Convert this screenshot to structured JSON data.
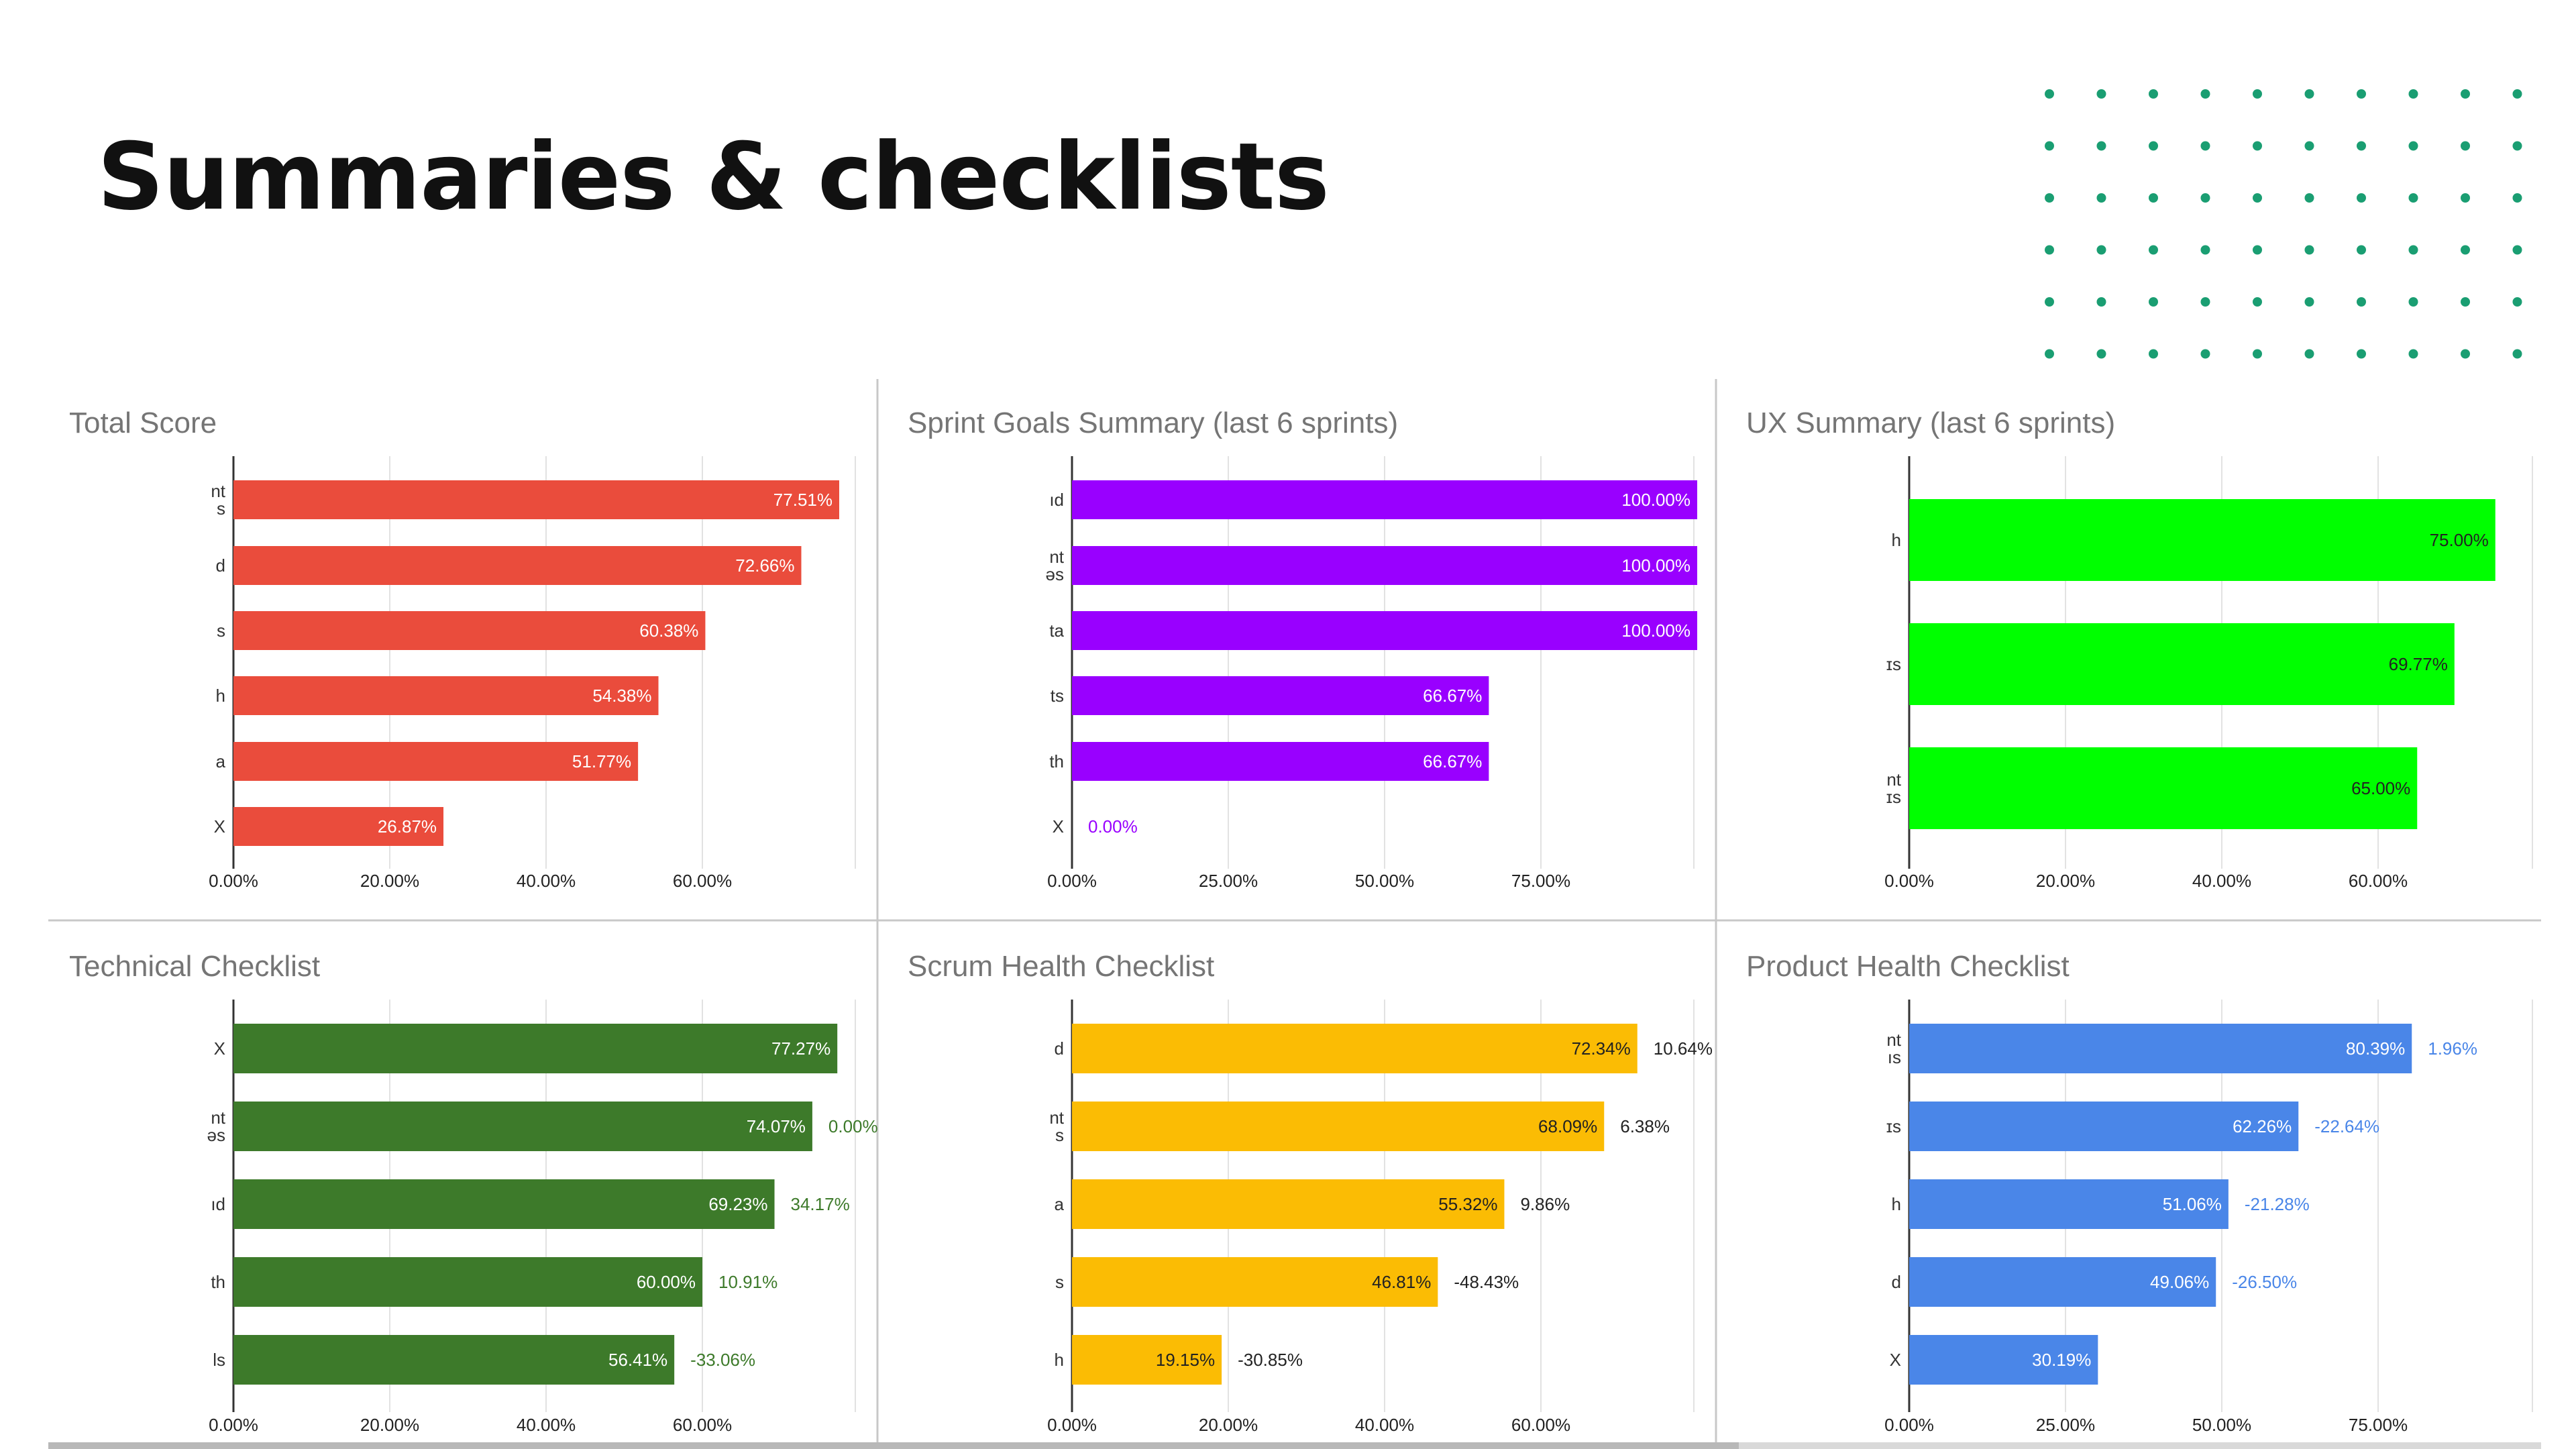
{
  "slide": {
    "title": "Summaries & checklists"
  },
  "decoration": {
    "dot_color": "#1a9e72",
    "dot_rows": 6,
    "dot_cols": 10
  },
  "chart_data": [
    {
      "type": "bar",
      "title": "Total Score",
      "orientation": "horizontal",
      "categories": [
        "nt\ns",
        "d",
        "s",
        "h",
        "a",
        "X"
      ],
      "values": [
        77.51,
        72.66,
        60.38,
        54.38,
        51.77,
        26.87
      ],
      "value_labels": [
        "77.51%",
        "72.66%",
        "60.38%",
        "54.38%",
        "51.77%",
        "26.87%"
      ],
      "xlim": [
        0,
        80
      ],
      "ticks": [
        0,
        20,
        40,
        60
      ],
      "tick_labels": [
        "0.00%",
        "20.00%",
        "40.00%",
        "60.00%"
      ],
      "bar_color": "#ea4c3c",
      "grid": true
    },
    {
      "type": "bar",
      "title": "Sprint Goals Summary (last 6 sprints)",
      "orientation": "horizontal",
      "categories": [
        "ıd",
        "nt\nəs",
        "ta",
        "ts",
        "th",
        "X"
      ],
      "values": [
        100,
        100,
        100,
        66.67,
        66.67,
        0
      ],
      "value_labels": [
        "100.00%",
        "100.00%",
        "100.00%",
        "66.67%",
        "66.67%",
        "0.00%"
      ],
      "xlim": [
        0,
        100
      ],
      "ticks": [
        0,
        25,
        50,
        75
      ],
      "tick_labels": [
        "0.00%",
        "25.00%",
        "50.00%",
        "75.00%"
      ],
      "bar_color": "#9900ff",
      "grid": true
    },
    {
      "type": "bar",
      "title": "UX Summary (last 6 sprints)",
      "orientation": "horizontal",
      "categories": [
        "h",
        "ɪs",
        "nt\nɪs"
      ],
      "values": [
        75.0,
        69.77,
        65.0
      ],
      "value_labels": [
        "75.00%",
        "69.77%",
        "65.00%"
      ],
      "xlim": [
        0,
        80
      ],
      "ticks": [
        0,
        20,
        40,
        60
      ],
      "tick_labels": [
        "0.00%",
        "20.00%",
        "40.00%",
        "60.00%"
      ],
      "bar_color": "#00ff00",
      "grid": true
    },
    {
      "type": "bar",
      "title": "Technical Checklist",
      "orientation": "horizontal",
      "categories": [
        "X",
        "nt\nəs",
        "ıd",
        "th",
        "ls"
      ],
      "values": [
        77.27,
        74.07,
        69.23,
        60.0,
        56.41
      ],
      "value_labels": [
        "77.27%",
        "74.07%",
        "69.23%",
        "60.00%",
        "56.41%"
      ],
      "delta_labels": [
        "",
        "0.00%",
        "34.17%",
        "10.91%",
        "-33.06%"
      ],
      "xlim": [
        0,
        80
      ],
      "ticks": [
        0,
        20,
        40,
        60
      ],
      "tick_labels": [
        "0.00%",
        "20.00%",
        "40.00%",
        "60.00%"
      ],
      "bar_color": "#3d7a2a",
      "delta_color": "#3d7a2a",
      "grid": true
    },
    {
      "type": "bar",
      "title": "Scrum Health Checklist",
      "orientation": "horizontal",
      "categories": [
        "d",
        "nt\ns",
        "a",
        "s",
        "h"
      ],
      "values": [
        72.34,
        68.09,
        55.32,
        46.81,
        19.15
      ],
      "value_labels": [
        "72.34%",
        "68.09%",
        "55.32%",
        "46.81%",
        "19.15%"
      ],
      "delta_labels": [
        "10.64%",
        "6.38%",
        "9.86%",
        "-48.43%",
        "-30.85%"
      ],
      "xlim": [
        0,
        80
      ],
      "ticks": [
        0,
        20,
        40,
        60
      ],
      "tick_labels": [
        "0.00%",
        "20.00%",
        "40.00%",
        "60.00%"
      ],
      "bar_color": "#fbbc04",
      "delta_color": "#222222",
      "grid": true
    },
    {
      "type": "bar",
      "title": "Product Health Checklist",
      "orientation": "horizontal",
      "categories": [
        "nt\nıs",
        "ɪs",
        "h",
        "d",
        "X"
      ],
      "values": [
        80.39,
        62.26,
        51.06,
        49.06,
        30.19
      ],
      "value_labels": [
        "80.39%",
        "62.26%",
        "51.06%",
        "49.06%",
        "30.19%"
      ],
      "delta_labels": [
        "1.96%",
        "-22.64%",
        "-21.28%",
        "-26.50%",
        ""
      ],
      "xlim": [
        0,
        100
      ],
      "ticks": [
        0,
        25,
        50,
        75
      ],
      "tick_labels": [
        "0.00%",
        "25.00%",
        "50.00%",
        "75.00%"
      ],
      "bar_color": "#4a86e8",
      "delta_color": "#4a86e8",
      "grid": true
    }
  ]
}
